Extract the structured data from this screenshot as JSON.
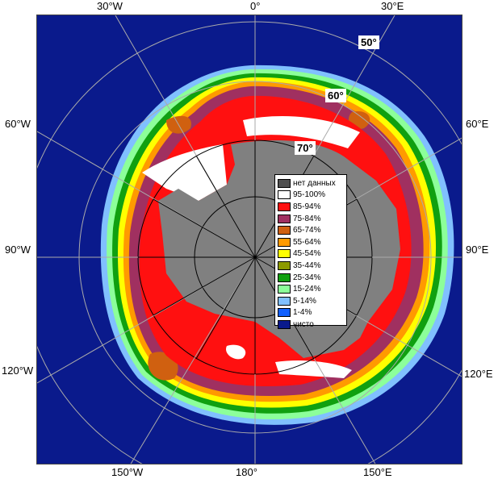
{
  "map": {
    "lon_labels": {
      "top_left": "30°W",
      "top_center": "0°",
      "top_right": "30°E",
      "left_upper": "60°W",
      "left_middle": "90°W",
      "left_lower": "120°W",
      "right_upper": "60°E",
      "right_middle": "90°E",
      "right_lower": "120°E",
      "bottom_left": "150°W",
      "bottom_center": "180°",
      "bottom_right": "150°E"
    },
    "lat_labels": {
      "lat50": "50°",
      "lat60": "60°",
      "lat70": "70°"
    },
    "colors": {
      "ocean": "#0a1a8c",
      "land": "#808080",
      "c95": "#ffffff",
      "c85": "#ff1010",
      "c75": "#a03060",
      "c65": "#d06010",
      "c55": "#ff9a00",
      "c45": "#ffff00",
      "c35": "#8c9a00",
      "c25": "#10a010",
      "c15": "#8cff9a",
      "c5": "#80c0ff",
      "c1": "#1060ff"
    }
  },
  "legend": {
    "items": [
      {
        "label": "нет данных",
        "color": "#505050"
      },
      {
        "label": "95-100%",
        "color": "#ffffff"
      },
      {
        "label": "85-94%",
        "color": "#ff1010"
      },
      {
        "label": "75-84%",
        "color": "#a03060"
      },
      {
        "label": "65-74%",
        "color": "#d06010"
      },
      {
        "label": "55-64%",
        "color": "#ff9a00"
      },
      {
        "label": "45-54%",
        "color": "#ffff00"
      },
      {
        "label": "35-44%",
        "color": "#8c9a00"
      },
      {
        "label": "25-34%",
        "color": "#10a010"
      },
      {
        "label": "15-24%",
        "color": "#8cff9a"
      },
      {
        "label": "5-14%",
        "color": "#80c0ff"
      },
      {
        "label": "1-4%",
        "color": "#1060ff"
      },
      {
        "label": "чисто",
        "color": "#0a1a8c"
      }
    ]
  }
}
